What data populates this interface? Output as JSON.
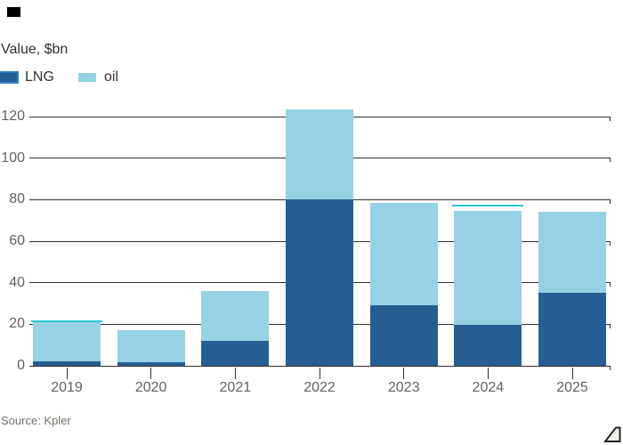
{
  "chart": {
    "value_label": "Value, $bn",
    "source": "Source: Kpler"
  },
  "chart_data": {
    "type": "bar",
    "stacked": true,
    "title": "Value, $bn",
    "categories": [
      "2019",
      "2020",
      "2021",
      "2022",
      "2023",
      "2024",
      "2025"
    ],
    "series": [
      {
        "name": "LNG",
        "color": "#255e93",
        "values": [
          2,
          1.5,
          12,
          80,
          29,
          19.5,
          35
        ]
      },
      {
        "name": "oil",
        "color": "#96d2e4",
        "values": [
          19,
          15.5,
          24,
          43.5,
          49.5,
          55,
          39
        ]
      }
    ],
    "totals": [
      21,
      17,
      36,
      123.5,
      78.5,
      74.5,
      74
    ],
    "markers": [
      {
        "category": "2019",
        "value": 21.5
      },
      {
        "category": "2024",
        "value": 77
      }
    ],
    "marker_color": "#2bc4d6",
    "yticks": [
      0,
      20,
      40,
      60,
      80,
      100,
      120
    ],
    "ylim": [
      0,
      126
    ],
    "xlabel": "",
    "ylabel": "Value, $bn",
    "grid": true,
    "legend_position": "top-left"
  }
}
